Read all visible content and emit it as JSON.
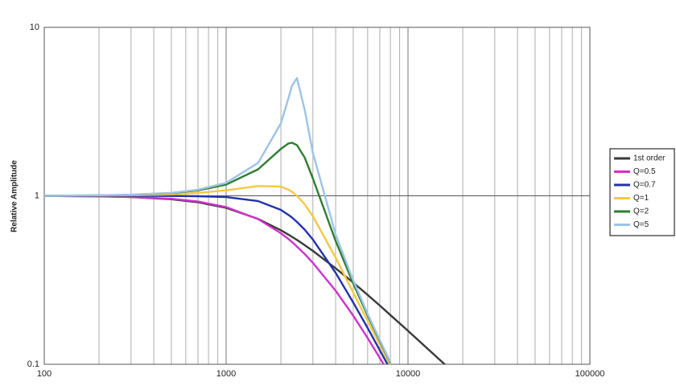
{
  "chart_data": {
    "type": "line",
    "y_label": "Relative Amplitude",
    "x_scale": "log",
    "y_scale": "log",
    "xlim": [
      100,
      100000
    ],
    "ylim": [
      0.1,
      10
    ],
    "xticks": [
      100,
      1000,
      10000,
      100000
    ],
    "xminorticks": [
      200,
      300,
      400,
      500,
      600,
      700,
      800,
      900,
      2000,
      3000,
      4000,
      5000,
      6000,
      7000,
      8000,
      9000,
      20000,
      30000,
      40000,
      50000,
      60000,
      70000,
      80000,
      90000
    ],
    "yticks": [
      0.1,
      1,
      10
    ],
    "grid": true,
    "legend": "right",
    "x": [
      100,
      200,
      300,
      500,
      700,
      1000,
      1500,
      2000,
      2200,
      2300,
      2450,
      2700,
      3000,
      4000,
      5000,
      6000,
      7000,
      8000,
      10000,
      16000
    ],
    "series": [
      {
        "name": "1st order",
        "color": "#3a3a3a",
        "values": [
          0.998,
          0.992,
          0.983,
          0.954,
          0.916,
          0.848,
          0.729,
          0.625,
          0.588,
          0.571,
          0.547,
          0.51,
          0.471,
          0.371,
          0.305,
          0.258,
          0.223,
          0.196,
          0.158,
          0.0995
        ]
      },
      {
        "name": "Q=0.5",
        "color": "#cc33cc",
        "values": [
          0.998,
          0.993,
          0.985,
          0.96,
          0.925,
          0.857,
          0.727,
          0.6,
          0.554,
          0.532,
          0.5,
          0.452,
          0.4,
          0.273,
          0.194,
          0.143,
          0.109,
          0.086,
          null,
          null
        ]
      },
      {
        "name": "Q=0.7",
        "color": "#2233aa",
        "values": [
          1.0,
          1.0,
          1.0,
          0.998,
          0.995,
          0.983,
          0.93,
          0.825,
          0.771,
          0.743,
          0.7,
          0.63,
          0.55,
          0.349,
          0.232,
          0.164,
          0.121,
          0.093,
          null,
          null
        ]
      },
      {
        "name": "Q=1",
        "color": "#f5c842",
        "values": [
          1.0,
          1.003,
          1.007,
          1.02,
          1.04,
          1.078,
          1.143,
          1.134,
          1.089,
          1.057,
          1.0,
          0.891,
          0.756,
          0.429,
          0.266,
          0.18,
          0.13,
          0.098,
          null,
          null
        ]
      },
      {
        "name": "Q=2",
        "color": "#2e7d32",
        "values": [
          1.0,
          1.006,
          1.013,
          1.038,
          1.076,
          1.165,
          1.437,
          1.897,
          2.045,
          2.065,
          2.0,
          1.691,
          1.266,
          0.539,
          0.301,
          0.194,
          0.137,
          0.102,
          null,
          null
        ]
      },
      {
        "name": "Q=5",
        "color": "#9dc3e6",
        "values": [
          1.0,
          1.007,
          1.015,
          1.042,
          1.087,
          1.194,
          1.57,
          2.692,
          3.786,
          4.502,
          5.0,
          3.251,
          1.798,
          0.589,
          0.314,
          0.199,
          0.139,
          0.103,
          null,
          null
        ]
      }
    ]
  }
}
